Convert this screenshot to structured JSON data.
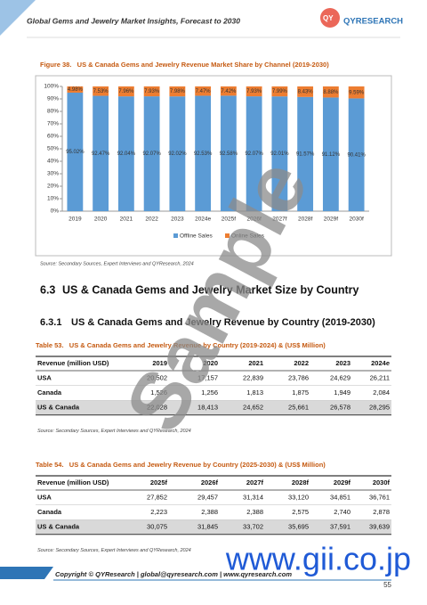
{
  "header": {
    "title": "Global Gems and Jewelry Market Insights, Forecast to 2030",
    "logo": "QYRESEARCH"
  },
  "figure": {
    "caption": "Figure 38.   US & Canada Gems and Jewelry Revenue Market Share by Channel (2019-2030)",
    "chart_data": {
      "type": "bar",
      "stacked": true,
      "categories": [
        "2019",
        "2020",
        "2021",
        "2022",
        "2023",
        "2024e",
        "2025f",
        "2026f",
        "2027f",
        "2028f",
        "2029f",
        "2030f"
      ],
      "series": [
        {
          "name": "Offline Sales",
          "color": "#5b9bd5",
          "values": [
            95.02,
            92.47,
            92.04,
            92.07,
            92.02,
            92.53,
            92.58,
            92.07,
            92.01,
            91.57,
            91.12,
            90.41
          ],
          "value_labels": [
            "95.02%",
            "92.47%",
            "92.04%",
            "92.07%",
            "92.02%",
            "92.53%",
            "92.58%",
            "92.07%",
            "92.01%",
            "91.57%",
            "91.12%",
            "90.41%"
          ]
        },
        {
          "name": "Online Sales",
          "color": "#ed7d31",
          "values": [
            4.98,
            7.53,
            7.96,
            7.93,
            7.98,
            7.47,
            7.42,
            7.93,
            7.99,
            8.43,
            8.88,
            9.59
          ],
          "value_labels": [
            "4.98%",
            "7.53%",
            "7.96%",
            "7.93%",
            "7.98%",
            "7.47%",
            "7.42%",
            "7.93%",
            "7.99%",
            "8.43%",
            "8.88%",
            "9.59%"
          ]
        }
      ],
      "ylim": [
        0,
        100
      ],
      "yticks": [
        {
          "value": 0,
          "label": "0%"
        },
        {
          "value": 10,
          "label": "10%"
        },
        {
          "value": 20,
          "label": "20%"
        },
        {
          "value": 30,
          "label": "30%"
        },
        {
          "value": 40,
          "label": "40%"
        },
        {
          "value": 50,
          "label": "50%"
        },
        {
          "value": 60,
          "label": "60%"
        },
        {
          "value": 70,
          "label": "70%"
        },
        {
          "value": 80,
          "label": "80%"
        },
        {
          "value": 90,
          "label": "90%"
        },
        {
          "value": 100,
          "label": "100%"
        }
      ],
      "legend": "bottom"
    },
    "source": "Source: Secondary Sources, Expert Interviews and QYResearch, 2024"
  },
  "sections": [
    {
      "number": "6.3",
      "title": "US & Canada Gems and Jewelry Market Size by Country"
    },
    {
      "number": "6.3.1",
      "title": "US & Canada Gems and Jewelry Revenue by Country (2019-2030)"
    }
  ],
  "tables": [
    {
      "caption": "Table 53.   US & Canada Gems and Jewelry Revenue by Country (2019-2024) & (US$ Million)",
      "columns": [
        "Revenue (million USD)",
        "2019",
        "2020",
        "2021",
        "2022",
        "2023",
        "2024e"
      ],
      "rows": [
        [
          "USA",
          "20,502",
          "17,157",
          "22,839",
          "23,786",
          "24,629",
          "26,211"
        ],
        [
          "Canada",
          "1,526",
          "1,256",
          "1,813",
          "1,875",
          "1,949",
          "2,084"
        ],
        [
          "US & Canada",
          "22,028",
          "18,413",
          "24,652",
          "25,661",
          "26,578",
          "28,295"
        ]
      ],
      "source": "Source: Secondary Sources, Expert Interviews and QYResearch, 2024"
    },
    {
      "caption": "Table 54.   US & Canada Gems and Jewelry Revenue by Country (2025-2030) & (US$ Million)",
      "columns": [
        "Revenue (million USD)",
        "2025f",
        "2026f",
        "2027f",
        "2028f",
        "2029f",
        "2030f"
      ],
      "rows": [
        [
          "USA",
          "27,852",
          "29,457",
          "31,314",
          "33,120",
          "34,851",
          "36,761"
        ],
        [
          "Canada",
          "2,223",
          "2,388",
          "2,388",
          "2,575",
          "2,740",
          "2,878"
        ],
        [
          "US & Canada",
          "30,075",
          "31,845",
          "33,702",
          "35,695",
          "37,591",
          "39,639"
        ]
      ],
      "source": "Source: Secondary Sources, Expert Interviews and QYResearch, 2024"
    }
  ],
  "footer": {
    "copyright": "Copyright © QYResearch | global@qyresearch.com | www.qyresearch.com",
    "page": "55"
  },
  "watermarks": [
    "Sample",
    "www.gii.co.jp"
  ]
}
